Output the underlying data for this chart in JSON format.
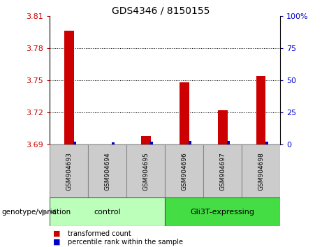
{
  "title": "GDS4346 / 8150155",
  "samples": [
    "GSM904693",
    "GSM904694",
    "GSM904695",
    "GSM904696",
    "GSM904697",
    "GSM904698"
  ],
  "red_values": [
    3.796,
    3.69,
    3.698,
    3.748,
    3.722,
    3.754
  ],
  "blue_values": [
    2.0,
    1.5,
    2.0,
    2.5,
    2.5,
    2.0
  ],
  "y_min": 3.69,
  "y_max": 3.81,
  "y_ticks": [
    3.69,
    3.72,
    3.75,
    3.78,
    3.81
  ],
  "right_y_ticks": [
    0,
    25,
    50,
    75,
    100
  ],
  "right_y_labels": [
    "0",
    "25",
    "50",
    "75",
    "100%"
  ],
  "groups": [
    {
      "label": "control",
      "start": 0,
      "end": 3,
      "color": "#bbffbb"
    },
    {
      "label": "Gli3T-expressing",
      "start": 3,
      "end": 6,
      "color": "#44dd44"
    }
  ],
  "sample_box_color": "#cccccc",
  "red_bar_width": 0.25,
  "blue_bar_width": 0.08,
  "red_color": "#cc0000",
  "blue_color": "#0000cc",
  "left_tick_color": "#cc0000",
  "right_tick_color": "#0000cc",
  "legend_red_label": "transformed count",
  "legend_blue_label": "percentile rank within the sample",
  "genotype_label": "genotype/variation",
  "grid_color": "#000000",
  "grid_ticks": [
    3.72,
    3.75,
    3.78
  ]
}
